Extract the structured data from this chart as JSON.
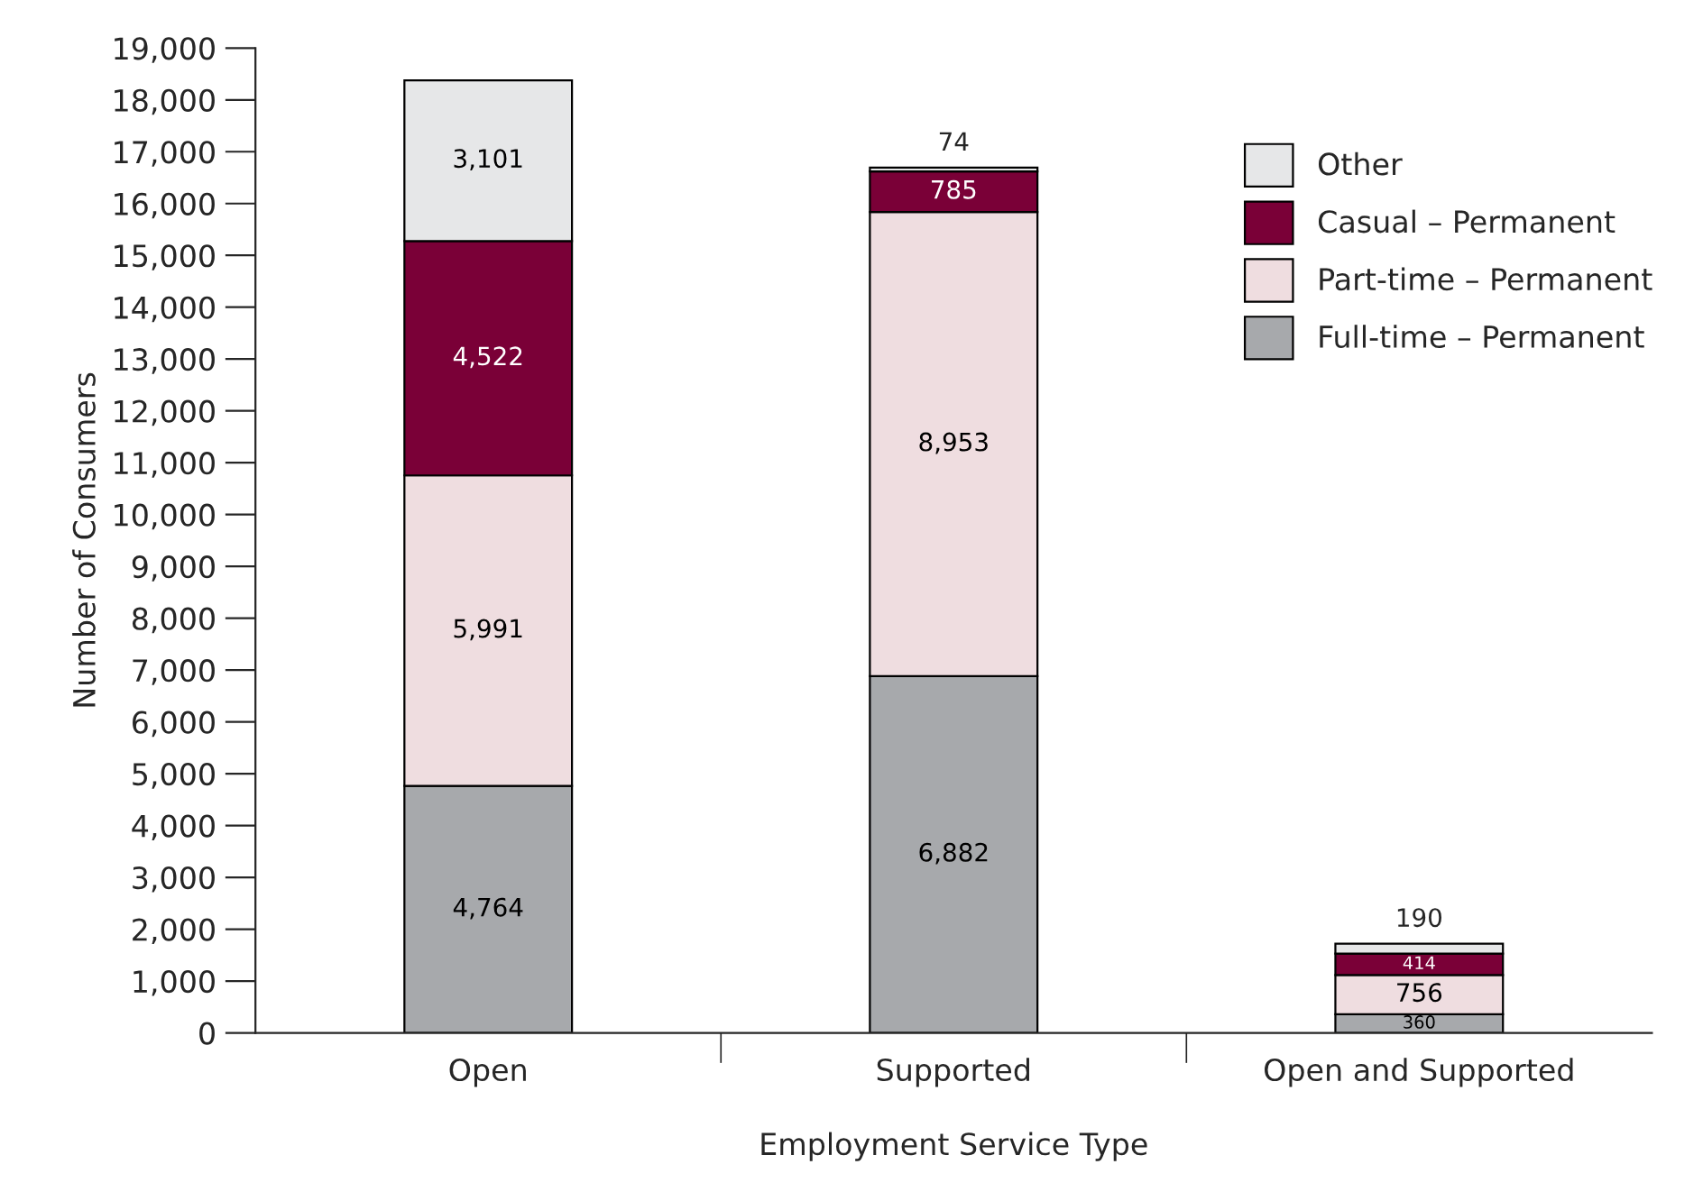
{
  "chart_data": {
    "type": "bar",
    "stacked": true,
    "xlabel": "Employment Service Type",
    "ylabel": "Number of Consumers",
    "categories": [
      "Open",
      "Supported",
      "Open and Supported"
    ],
    "series": [
      {
        "name": "Full-time – Permanent",
        "color": "#a7a9ac",
        "values": [
          4764,
          6882,
          360
        ],
        "value_labels": [
          "4,764",
          "6,882",
          "360"
        ]
      },
      {
        "name": "Part-time – Permanent",
        "color": "#efdde0",
        "values": [
          5991,
          8953,
          756
        ],
        "value_labels": [
          "5,991",
          "8,953",
          "756"
        ]
      },
      {
        "name": "Casual – Permanent",
        "color": "#7a0037",
        "values": [
          4522,
          785,
          414
        ],
        "value_labels": [
          "4,522",
          "785",
          "414"
        ]
      },
      {
        "name": "Other",
        "color": "#e6e7e8",
        "values": [
          3101,
          74,
          190
        ],
        "value_labels": [
          "3,101",
          "74",
          "190"
        ]
      }
    ],
    "ylim": [
      0,
      19000
    ],
    "yticks": [
      {
        "value": 0,
        "label": "0"
      },
      {
        "value": 1000,
        "label": "1,000"
      },
      {
        "value": 2000,
        "label": "2,000"
      },
      {
        "value": 3000,
        "label": "3,000"
      },
      {
        "value": 4000,
        "label": "4,000"
      },
      {
        "value": 5000,
        "label": "5,000"
      },
      {
        "value": 6000,
        "label": "6,000"
      },
      {
        "value": 7000,
        "label": "7,000"
      },
      {
        "value": 8000,
        "label": "8,000"
      },
      {
        "value": 9000,
        "label": "9,000"
      },
      {
        "value": 10000,
        "label": "10,000"
      },
      {
        "value": 11000,
        "label": "11,000"
      },
      {
        "value": 12000,
        "label": "12,000"
      },
      {
        "value": 13000,
        "label": "13,000"
      },
      {
        "value": 14000,
        "label": "14,000"
      },
      {
        "value": 15000,
        "label": "15,000"
      },
      {
        "value": 16000,
        "label": "16,000"
      },
      {
        "value": 17000,
        "label": "17,000"
      },
      {
        "value": 18000,
        "label": "18,000"
      },
      {
        "value": 19000,
        "label": "19,000"
      }
    ],
    "grid": false,
    "legend": "top right"
  }
}
